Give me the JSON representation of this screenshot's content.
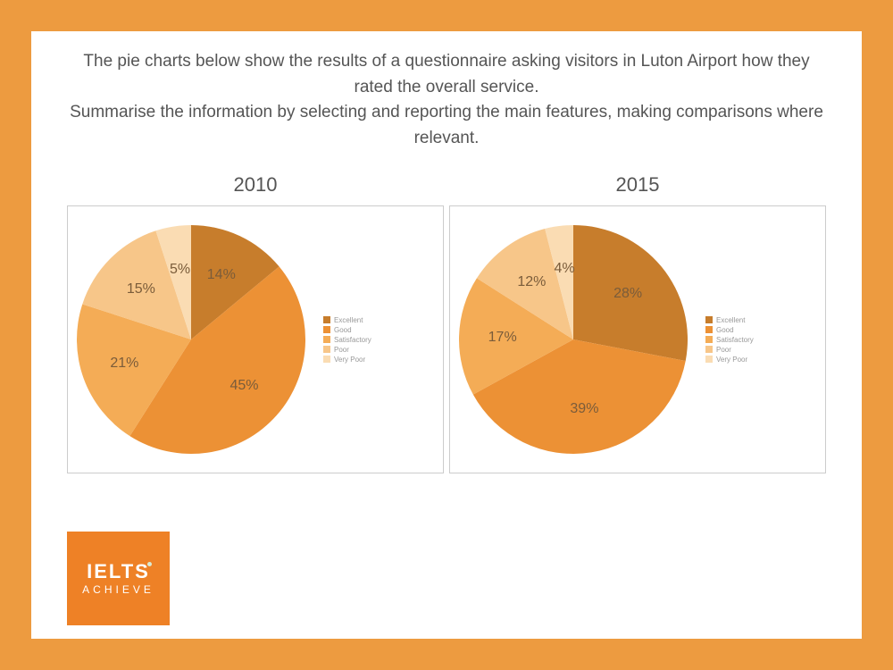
{
  "frame_color": "#ed9b40",
  "background_color": "#ffffff",
  "headline": "The pie charts below show the results of a questionnaire asking visitors in Luton Airport how they rated the overall service.\nSummarise the information by selecting and reporting the main features, making comparisons where relevant.",
  "headline_color": "#555555",
  "categories": [
    "Excellent",
    "Good",
    "Satisfactory",
    "Poor",
    "Very Poor"
  ],
  "palette": [
    "#c77d2c",
    "#ec9135",
    "#f4ac56",
    "#f7c689",
    "#fadcb3"
  ],
  "legend_fontsize": 8,
  "data_label_color": "#7a5c3a",
  "chart_left": {
    "type": "pie",
    "year": "2010",
    "values": [
      14,
      45,
      21,
      15,
      5
    ],
    "labels": [
      "14%",
      "45%",
      "21%",
      "15%",
      "5%"
    ],
    "start_angle_deg": 0
  },
  "chart_right": {
    "type": "pie",
    "year": "2015",
    "values": [
      28,
      39,
      17,
      12,
      4
    ],
    "labels": [
      "28%",
      "39%",
      "17%",
      "12%",
      "4%"
    ],
    "start_angle_deg": 0
  },
  "logo": {
    "bg_color": "#ee8126",
    "top_text": "IELTS",
    "bottom_text": "ACHIEVE"
  }
}
